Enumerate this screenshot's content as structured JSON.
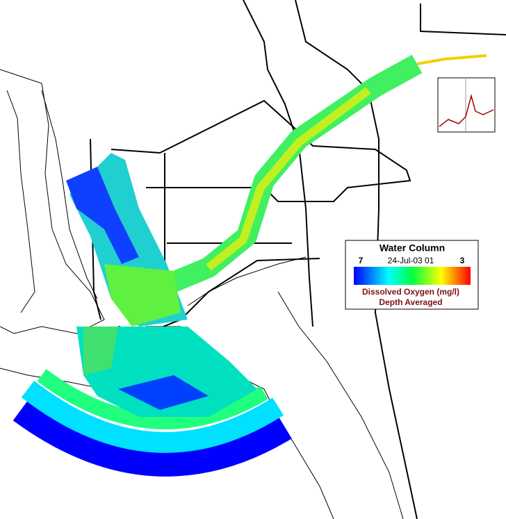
{
  "legend": {
    "title": "Water Column",
    "min_label": "7",
    "date": "24-Jul-03 01",
    "max_label": "3",
    "variable": "Dissolved Oxygen (mg/l)",
    "note": "Depth Averaged"
  }
}
